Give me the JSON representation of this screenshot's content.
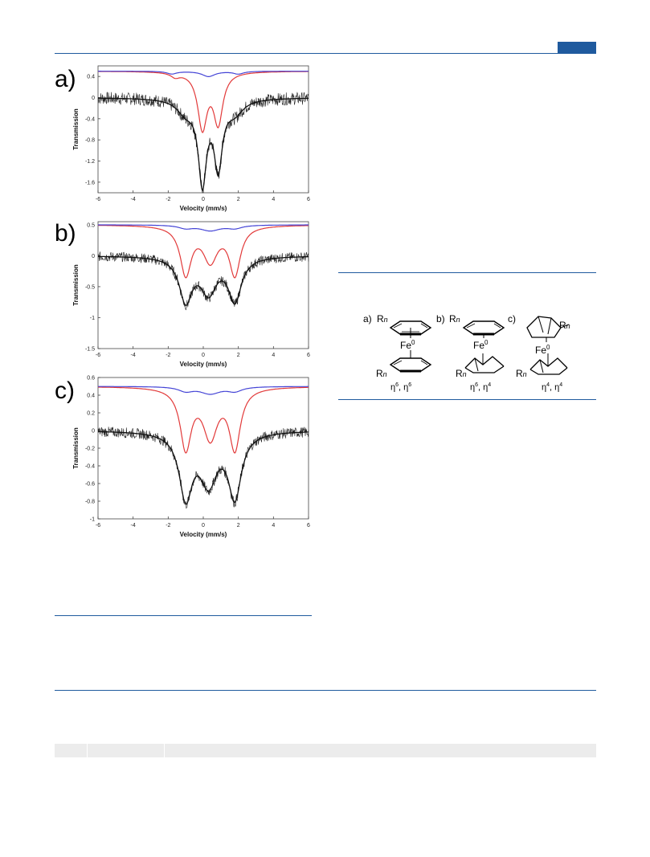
{
  "figure_mossbauer": {
    "panels": [
      {
        "letter": "a)"
      },
      {
        "letter": "b)"
      },
      {
        "letter": "c)"
      }
    ],
    "xlabel": "Velocity (mm/s)",
    "ylabel": "Transmission"
  },
  "chart_data": [
    {
      "type": "line",
      "panel": "a)",
      "xlabel": "Velocity (mm/s)",
      "ylabel": "Transmission",
      "xlim": [
        -6,
        6
      ],
      "ylim": [
        -1.8,
        0.6
      ],
      "xticks": [
        "-6",
        "-4",
        "-2",
        "0",
        "2",
        "4",
        "6"
      ],
      "yticks": [
        "0.4",
        "0",
        "-0.4",
        "-0.8",
        "-1.2",
        "-1.6"
      ],
      "ytick_values": [
        0.4,
        0,
        -0.4,
        -0.8,
        -1.2,
        -1.6
      ],
      "series": [
        {
          "style": "data",
          "color": "#222222",
          "baseline": 0.0,
          "peaks": [
            {
              "c": -0.05,
              "d": 1.55,
              "w": 0.28
            },
            {
              "c": 0.85,
              "d": 1.25,
              "w": 0.28
            },
            {
              "c": -1.0,
              "d": 0.25,
              "w": 0.6
            },
            {
              "c": 1.8,
              "d": 0.25,
              "w": 0.6
            }
          ],
          "noise": 0.12
        },
        {
          "style": "fit",
          "color": "#111111",
          "baseline": 0.0,
          "peaks": [
            {
              "c": -0.05,
              "d": 1.55,
              "w": 0.28
            },
            {
              "c": 0.85,
              "d": 1.25,
              "w": 0.28
            },
            {
              "c": -1.0,
              "d": 0.25,
              "w": 0.6
            },
            {
              "c": 1.8,
              "d": 0.25,
              "w": 0.6
            }
          ]
        },
        {
          "style": "component",
          "color": "#e23a3a",
          "baseline": 0.5,
          "peaks": [
            {
              "c": -1.6,
              "d": 0.08,
              "w": 0.3
            },
            {
              "c": -0.05,
              "d": 1.05,
              "w": 0.32
            },
            {
              "c": 0.85,
              "d": 0.95,
              "w": 0.32
            }
          ]
        },
        {
          "style": "component",
          "color": "#4444d6",
          "baseline": 0.5,
          "peaks": [
            {
              "c": -1.8,
              "d": 0.05,
              "w": 0.35
            },
            {
              "c": 0.3,
              "d": 0.1,
              "w": 0.45
            },
            {
              "c": 2.0,
              "d": 0.05,
              "w": 0.35
            }
          ]
        }
      ]
    },
    {
      "type": "line",
      "panel": "b)",
      "xlabel": "Velocity (mm/s)",
      "ylabel": "Transmission",
      "xlim": [
        -6,
        6
      ],
      "ylim": [
        -1.5,
        0.55
      ],
      "xticks": [
        "-6",
        "-4",
        "-2",
        "0",
        "2",
        "4",
        "6"
      ],
      "yticks": [
        "0.5",
        "0",
        "-0.5",
        "-1",
        "-1.5"
      ],
      "ytick_values": [
        0.5,
        0,
        -0.5,
        -1,
        -1.5
      ],
      "series": [
        {
          "style": "data",
          "color": "#222222",
          "baseline": 0.0,
          "peaks": [
            {
              "c": -1.0,
              "d": 0.7,
              "w": 0.45
            },
            {
              "c": 0.3,
              "d": 0.55,
              "w": 0.55
            },
            {
              "c": 1.8,
              "d": 0.7,
              "w": 0.45
            }
          ],
          "noise": 0.08
        },
        {
          "style": "fit",
          "color": "#111111",
          "baseline": 0.0,
          "peaks": [
            {
              "c": -1.0,
              "d": 0.7,
              "w": 0.45
            },
            {
              "c": 0.3,
              "d": 0.55,
              "w": 0.55
            },
            {
              "c": 1.8,
              "d": 0.7,
              "w": 0.45
            }
          ]
        },
        {
          "style": "component",
          "color": "#e23a3a",
          "baseline": 0.5,
          "peaks": [
            {
              "c": -1.0,
              "d": 0.78,
              "w": 0.38
            },
            {
              "c": 0.4,
              "d": 0.55,
              "w": 0.5
            },
            {
              "c": 1.8,
              "d": 0.78,
              "w": 0.38
            }
          ]
        },
        {
          "style": "component",
          "color": "#4444d6",
          "baseline": 0.5,
          "peaks": [
            {
              "c": -1.0,
              "d": 0.05,
              "w": 0.5
            },
            {
              "c": 0.4,
              "d": 0.09,
              "w": 0.7
            },
            {
              "c": 1.8,
              "d": 0.05,
              "w": 0.5
            }
          ]
        }
      ]
    },
    {
      "type": "line",
      "panel": "c)",
      "xlabel": "Velocity (mm/s)",
      "ylabel": "Transmission",
      "xlim": [
        -6,
        6
      ],
      "ylim": [
        -1.0,
        0.6
      ],
      "xticks": [
        "-6",
        "-4",
        "-2",
        "0",
        "2",
        "4",
        "6"
      ],
      "yticks": [
        "0.6",
        "0.4",
        "0.2",
        "0",
        "-0.2",
        "-0.4",
        "-0.6",
        "-0.8",
        "-1"
      ],
      "ytick_values": [
        0.6,
        0.4,
        0.2,
        0,
        -0.2,
        -0.4,
        -0.6,
        -0.8,
        -1.0
      ],
      "series": [
        {
          "style": "data",
          "color": "#222222",
          "baseline": 0.0,
          "peaks": [
            {
              "c": -1.0,
              "d": 0.72,
              "w": 0.45
            },
            {
              "c": 0.3,
              "d": 0.55,
              "w": 0.6
            },
            {
              "c": 1.8,
              "d": 0.72,
              "w": 0.45
            }
          ],
          "noise": 0.06
        },
        {
          "style": "fit",
          "color": "#111111",
          "baseline": 0.0,
          "peaks": [
            {
              "c": -1.0,
              "d": 0.72,
              "w": 0.45
            },
            {
              "c": 0.3,
              "d": 0.55,
              "w": 0.6
            },
            {
              "c": 1.8,
              "d": 0.72,
              "w": 0.45
            }
          ]
        },
        {
          "style": "component",
          "color": "#e23a3a",
          "baseline": 0.5,
          "peaks": [
            {
              "c": -1.0,
              "d": 0.68,
              "w": 0.38
            },
            {
              "c": 0.4,
              "d": 0.55,
              "w": 0.5
            },
            {
              "c": 1.8,
              "d": 0.68,
              "w": 0.38
            }
          ]
        },
        {
          "style": "component",
          "color": "#4444d6",
          "baseline": 0.5,
          "peaks": [
            {
              "c": -1.0,
              "d": 0.05,
              "w": 0.5
            },
            {
              "c": 0.4,
              "d": 0.08,
              "w": 0.7
            },
            {
              "c": 1.8,
              "d": 0.05,
              "w": 0.5
            }
          ]
        }
      ]
    }
  ],
  "scheme": {
    "items": [
      {
        "letter": "a)",
        "metal": "Fe",
        "ox": "0",
        "hapto": "η",
        "h1": "6",
        "h2": "6",
        "r": "R",
        "n": "n"
      },
      {
        "letter": "b)",
        "metal": "Fe",
        "ox": "0",
        "hapto": "η",
        "h1": "6",
        "h2": "4",
        "r": "R",
        "n": "n"
      },
      {
        "letter": "c)",
        "metal": "Fe",
        "ox": "0",
        "hapto": "η",
        "h1": "4",
        "h2": "4",
        "r": "R",
        "n": "n"
      }
    ]
  },
  "colors": {
    "accent_blue": "#1f5a9e",
    "table_band": "#ececec"
  }
}
